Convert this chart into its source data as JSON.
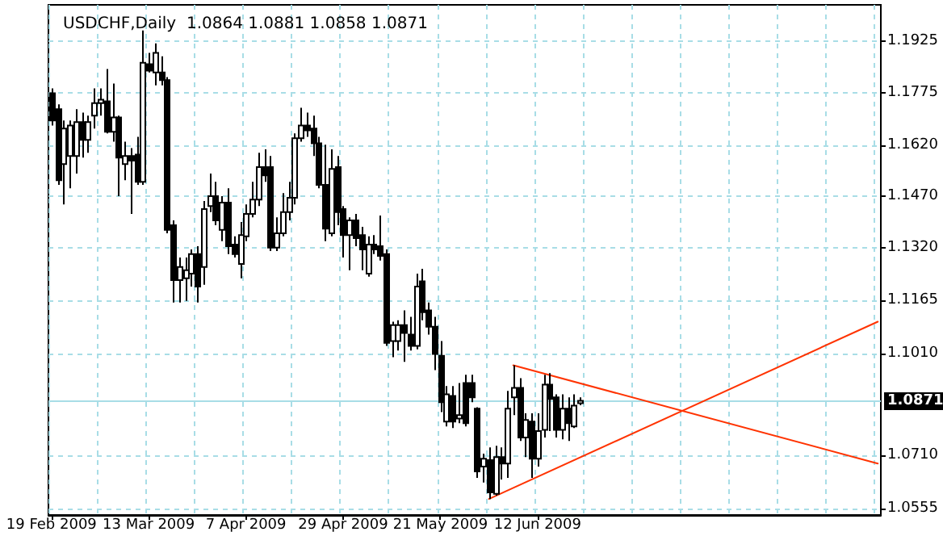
{
  "chart_data": {
    "type": "candlestick",
    "title": "USDCHF,Daily  1.0864 1.0881 1.0858 1.0871",
    "categories": [
      "19 Feb 2009",
      null,
      null,
      null,
      null,
      null,
      null,
      null,
      null,
      null,
      null,
      null,
      null,
      null,
      null,
      null,
      "13 Mar 2009",
      null,
      null,
      null,
      null,
      null,
      null,
      null,
      null,
      null,
      null,
      null,
      null,
      null,
      null,
      null,
      "7 Apr 2009",
      null,
      null,
      null,
      null,
      null,
      null,
      null,
      null,
      null,
      null,
      null,
      null,
      null,
      null,
      null,
      "29 Apr 2009",
      null,
      null,
      null,
      null,
      null,
      null,
      null,
      null,
      null,
      null,
      null,
      null,
      null,
      null,
      null,
      "21 May 2009",
      null,
      null,
      null,
      null,
      null,
      null,
      null,
      null,
      null,
      null,
      null,
      null,
      null,
      null,
      null,
      "12 Jun 2009",
      null,
      null,
      null,
      null,
      null,
      null,
      null,
      null,
      null,
      null,
      null,
      null,
      null,
      null,
      null,
      null,
      null,
      null,
      null,
      null,
      null,
      null,
      null,
      null,
      null,
      null,
      null,
      null,
      null,
      null,
      null,
      null,
      null,
      null,
      null,
      null,
      null,
      null,
      null,
      null,
      null,
      null,
      null,
      null,
      null,
      null,
      null,
      null,
      null,
      null,
      null,
      null,
      null,
      null,
      null,
      null
    ],
    "ohlc": [
      [
        1.1773,
        1.1787,
        1.1678,
        1.1693
      ],
      [
        1.1726,
        1.174,
        1.1504,
        1.1518
      ],
      [
        1.1565,
        1.1693,
        1.1447,
        1.1669
      ],
      [
        1.1589,
        1.1693,
        1.1494,
        1.1678
      ],
      [
        1.1589,
        1.1726,
        1.1537,
        1.1688
      ],
      [
        1.1688,
        1.1716,
        1.1584,
        1.1636
      ],
      [
        1.1636,
        1.1707,
        1.1598,
        1.1688
      ],
      [
        1.1707,
        1.1787,
        1.1669,
        1.1744
      ],
      [
        1.1744,
        1.1787,
        1.1707,
        1.1754
      ],
      [
        1.1749,
        1.1844,
        1.1655,
        1.166
      ],
      [
        1.166,
        1.1801,
        1.1631,
        1.1702
      ],
      [
        1.1702,
        1.1707,
        1.1471,
        1.1584
      ],
      [
        1.1565,
        1.1631,
        1.1518,
        1.1589
      ],
      [
        1.1589,
        1.1612,
        1.1419,
        1.1575
      ],
      [
        1.1593,
        1.1645,
        1.1504,
        1.1513
      ],
      [
        1.1513,
        1.1957,
        1.1504,
        1.1862
      ],
      [
        1.1858,
        1.1891,
        1.1834,
        1.1839
      ],
      [
        1.1834,
        1.1919,
        1.1796,
        1.1891
      ],
      [
        1.1834,
        1.1881,
        1.1796,
        1.1811
      ],
      [
        1.1811,
        1.182,
        1.1362,
        1.1372
      ],
      [
        1.1386,
        1.14,
        1.1159,
        1.1225
      ],
      [
        1.1225,
        1.1291,
        1.1159,
        1.1263
      ],
      [
        1.123,
        1.1291,
        1.1164,
        1.1254
      ],
      [
        1.1244,
        1.1315,
        1.1206,
        1.1301
      ],
      [
        1.1301,
        1.1324,
        1.1159,
        1.1206
      ],
      [
        1.1263,
        1.1457,
        1.1211,
        1.1433
      ],
      [
        1.1442,
        1.1537,
        1.1424,
        1.1471
      ],
      [
        1.1471,
        1.1513,
        1.1386,
        1.14
      ],
      [
        1.1372,
        1.1471,
        1.1339,
        1.1452
      ],
      [
        1.1452,
        1.1494,
        1.1301,
        1.1324
      ],
      [
        1.1329,
        1.1353,
        1.1291,
        1.1301
      ],
      [
        1.1272,
        1.1395,
        1.123,
        1.1357
      ],
      [
        1.1353,
        1.1447,
        1.1339,
        1.1419
      ],
      [
        1.1419,
        1.1513,
        1.1409,
        1.1461
      ],
      [
        1.1461,
        1.1598,
        1.1442,
        1.1556
      ],
      [
        1.1556,
        1.1608,
        1.1513,
        1.1532
      ],
      [
        1.1556,
        1.1589,
        1.131,
        1.132
      ],
      [
        1.132,
        1.1409,
        1.131,
        1.1362
      ],
      [
        1.1362,
        1.148,
        1.1353,
        1.1424
      ],
      [
        1.1424,
        1.1513,
        1.14,
        1.1466
      ],
      [
        1.1466,
        1.1655,
        1.1447,
        1.1641
      ],
      [
        1.1641,
        1.173,
        1.1631,
        1.1678
      ],
      [
        1.1678,
        1.1716,
        1.1645,
        1.1664
      ],
      [
        1.1669,
        1.1707,
        1.1589,
        1.1626
      ],
      [
        1.1626,
        1.1645,
        1.1494,
        1.1504
      ],
      [
        1.1504,
        1.1622,
        1.1339,
        1.1376
      ],
      [
        1.1362,
        1.1608,
        1.1353,
        1.1551
      ],
      [
        1.1556,
        1.1589,
        1.1386,
        1.1424
      ],
      [
        1.1433,
        1.1442,
        1.1291,
        1.1357
      ],
      [
        1.1357,
        1.1409,
        1.1254,
        1.14
      ],
      [
        1.14,
        1.1419,
        1.1324,
        1.1348
      ],
      [
        1.1357,
        1.1381,
        1.1254,
        1.1315
      ],
      [
        1.1244,
        1.1353,
        1.1235,
        1.1329
      ],
      [
        1.1329,
        1.1357,
        1.1301,
        1.1315
      ],
      [
        1.1324,
        1.1414,
        1.1282,
        1.1296
      ],
      [
        1.1301,
        1.1315,
        1.1032,
        1.1041
      ],
      [
        1.1046,
        1.1103,
        1.0999,
        1.1093
      ],
      [
        1.1046,
        1.1107,
        1.1018,
        1.1093
      ],
      [
        1.1093,
        1.1136,
        1.0985,
        1.107
      ],
      [
        1.1065,
        1.1117,
        1.1018,
        1.1032
      ],
      [
        1.1032,
        1.1244,
        1.1022,
        1.1206
      ],
      [
        1.1221,
        1.1258,
        1.1107,
        1.1131
      ],
      [
        1.1136,
        1.1159,
        1.1065,
        1.1088
      ],
      [
        1.1088,
        1.1117,
        1.0961,
        1.1008
      ],
      [
        1.1003,
        1.1046,
        1.0838,
        1.0867
      ],
      [
        1.081,
        1.0914,
        1.0796,
        1.089
      ],
      [
        1.0885,
        1.0914,
        1.0791,
        1.081
      ],
      [
        1.0819,
        1.0923,
        1.0805,
        1.0829
      ],
      [
        1.0923,
        1.0947,
        1.0796,
        1.0805
      ],
      [
        1.0923,
        1.0947,
        1.0867,
        1.0881
      ],
      [
        1.0848,
        1.0852,
        1.0645,
        1.0664
      ],
      [
        1.0678,
        1.0716,
        1.0631,
        1.0701
      ],
      [
        1.0697,
        1.0734,
        1.0583,
        1.0602
      ],
      [
        1.0598,
        1.0739,
        1.0593,
        1.0706
      ],
      [
        1.0706,
        1.0734,
        1.064,
        1.0687
      ],
      [
        1.0687,
        1.09,
        1.0645,
        1.0848
      ],
      [
        1.0881,
        1.0975,
        1.0829,
        1.0909
      ],
      [
        1.0909,
        1.0937,
        1.0753,
        1.0763
      ],
      [
        1.0763,
        1.0834,
        1.0706,
        1.0815
      ],
      [
        1.081,
        1.0834,
        1.0645,
        1.0701
      ],
      [
        1.0701,
        1.0834,
        1.0678,
        1.0782
      ],
      [
        1.0786,
        1.0947,
        1.0763,
        1.0918
      ],
      [
        1.0918,
        1.0952,
        1.0782,
        1.0876
      ],
      [
        1.0881,
        1.089,
        1.0763,
        1.0786
      ],
      [
        1.0786,
        1.089,
        1.0758,
        1.0848
      ],
      [
        1.0848,
        1.0881,
        1.0753,
        1.0805
      ],
      [
        1.0796,
        1.089,
        1.0791,
        1.0857
      ],
      [
        1.0864,
        1.0881,
        1.0858,
        1.0871
      ],
      null,
      null,
      null,
      null,
      null,
      null,
      null,
      null,
      null,
      null,
      null,
      null,
      null,
      null,
      null,
      null,
      null,
      null,
      null,
      null,
      null,
      null,
      null,
      null,
      null,
      null,
      null,
      null,
      null,
      null,
      null,
      null,
      null,
      null,
      null,
      null,
      null,
      null,
      null,
      null,
      null,
      null,
      null,
      null,
      null,
      null,
      null,
      null,
      null
    ],
    "series": [
      {
        "type": "line",
        "color": "#ff3300",
        "values": [
          null,
          null,
          null,
          null,
          null,
          null,
          null,
          null,
          null,
          null,
          null,
          null,
          null,
          null,
          null,
          null,
          null,
          null,
          null,
          null,
          null,
          null,
          null,
          null,
          null,
          null,
          null,
          null,
          null,
          null,
          null,
          null,
          null,
          null,
          null,
          null,
          null,
          null,
          null,
          null,
          null,
          null,
          null,
          null,
          null,
          null,
          null,
          null,
          null,
          null,
          null,
          null,
          null,
          null,
          null,
          null,
          null,
          null,
          null,
          null,
          null,
          null,
          null,
          null,
          null,
          null,
          null,
          null,
          null,
          null,
          null,
          null,
          null,
          null,
          null,
          null,
          1.0975,
          null,
          null,
          null,
          null,
          null,
          null,
          null,
          null,
          null,
          null,
          null,
          null,
          null,
          null,
          null,
          null,
          null,
          null,
          null,
          null,
          null,
          null,
          null,
          null,
          null,
          null,
          null,
          null,
          null,
          null,
          null,
          null,
          null,
          null,
          null,
          null,
          null,
          null,
          null,
          null,
          null,
          null,
          null,
          null,
          null,
          null,
          null,
          null,
          null,
          null,
          null,
          null,
          null,
          null,
          null,
          null,
          null,
          null,
          null,
          1.0687
        ]
      },
      {
        "type": "line",
        "color": "#ff3300",
        "values": [
          null,
          null,
          null,
          null,
          null,
          null,
          null,
          null,
          null,
          null,
          null,
          null,
          null,
          null,
          null,
          null,
          null,
          null,
          null,
          null,
          null,
          null,
          null,
          null,
          null,
          null,
          null,
          null,
          null,
          null,
          null,
          null,
          null,
          null,
          null,
          null,
          null,
          null,
          null,
          null,
          null,
          null,
          null,
          null,
          null,
          null,
          null,
          null,
          null,
          null,
          null,
          null,
          null,
          null,
          null,
          null,
          null,
          null,
          null,
          null,
          null,
          null,
          null,
          null,
          null,
          null,
          null,
          null,
          null,
          null,
          null,
          null,
          1.0583,
          null,
          null,
          null,
          null,
          null,
          null,
          null,
          null,
          null,
          null,
          null,
          null,
          null,
          null,
          null,
          null,
          null,
          null,
          null,
          null,
          null,
          null,
          null,
          null,
          null,
          null,
          null,
          null,
          null,
          null,
          null,
          null,
          null,
          null,
          null,
          null,
          null,
          null,
          null,
          null,
          null,
          null,
          null,
          null,
          null,
          null,
          null,
          null,
          null,
          null,
          null,
          null,
          null,
          null,
          null,
          null,
          null,
          null,
          null,
          null,
          null,
          null,
          null,
          1.1103
        ]
      }
    ],
    "ylim": [
      1.0536,
      1.2032
    ],
    "yticks": [
      {
        "value": 1.0555,
        "label": "1.0555"
      },
      {
        "value": 1.071,
        "label": "1.0710"
      },
      {
        "value": 1.101,
        "label": "1.1010"
      },
      {
        "value": 1.1165,
        "label": "1.1165"
      },
      {
        "value": 1.132,
        "label": "1.1320"
      },
      {
        "value": 1.147,
        "label": "1.1470"
      },
      {
        "value": 1.162,
        "label": "1.1620"
      },
      {
        "value": 1.1775,
        "label": "1.1775"
      },
      {
        "value": 1.1925,
        "label": "1.1925"
      }
    ],
    "ref_lines": [
      {
        "axis": "y",
        "value": 1.0871,
        "label": "1.0871",
        "color": "#a8dde6"
      }
    ],
    "grid": true,
    "marker": "none",
    "line_style": "solid"
  }
}
